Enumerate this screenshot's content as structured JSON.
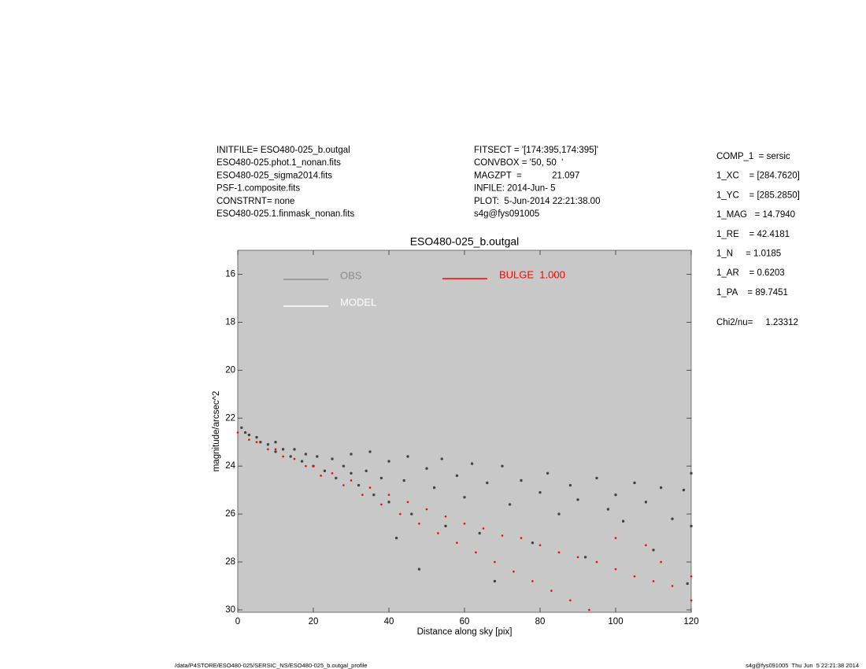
{
  "chart_data": {
    "type": "scatter",
    "title": "ESO480-025_b.outgal",
    "x_label": "Distance along sky [pix]",
    "y_label": "magnitude/arcsec^2",
    "xlim": [
      0,
      120
    ],
    "ylim": [
      15,
      30.1
    ],
    "y_reversed": true,
    "xticks": [
      0,
      20,
      40,
      60,
      80,
      100,
      120
    ],
    "yticks": [
      16,
      18,
      20,
      22,
      24,
      26,
      28,
      30
    ],
    "background": "#c8c8c8",
    "series": [
      {
        "name": "OBS",
        "color": "#444444",
        "legend_color": "#8c8c8c",
        "x": [
          1,
          2,
          3,
          5,
          6,
          8,
          10,
          10,
          12,
          14,
          15,
          17,
          18,
          20,
          21,
          23,
          25,
          26,
          28,
          30,
          30,
          32,
          34,
          35,
          36,
          38,
          40,
          40,
          42,
          44,
          45,
          46,
          48,
          50,
          52,
          54,
          55,
          58,
          60,
          62,
          64,
          66,
          68,
          70,
          72,
          75,
          78,
          80,
          82,
          85,
          88,
          90,
          92,
          95,
          98,
          100,
          102,
          105,
          108,
          110,
          112,
          115,
          118,
          119,
          120,
          120
        ],
        "values": [
          22.4,
          22.6,
          22.7,
          22.8,
          23.0,
          23.1,
          23.0,
          23.4,
          23.3,
          23.6,
          23.3,
          23.8,
          23.5,
          24.0,
          23.6,
          24.2,
          23.7,
          24.5,
          24.0,
          24.3,
          23.5,
          24.8,
          24.2,
          23.4,
          25.2,
          24.5,
          23.8,
          25.5,
          27.0,
          24.6,
          23.6,
          26.0,
          28.3,
          24.1,
          24.9,
          23.7,
          26.5,
          24.4,
          25.3,
          23.9,
          26.8,
          24.7,
          28.8,
          24.0,
          25.6,
          24.6,
          27.2,
          25.1,
          24.3,
          26.0,
          24.8,
          25.4,
          27.8,
          24.5,
          25.8,
          25.2,
          26.3,
          24.7,
          25.5,
          27.5,
          24.9,
          26.2,
          25.0,
          28.9,
          24.3,
          26.5
        ]
      },
      {
        "name": "MODEL",
        "color": "#ffffff",
        "legend_color": "#ffffff",
        "x": [],
        "values": []
      },
      {
        "name": "BULGE  1.000",
        "color": "#ff0000",
        "legend_color": "#ff0000",
        "x": [
          0,
          3,
          5,
          8,
          10,
          12,
          15,
          18,
          20,
          22,
          25,
          28,
          30,
          33,
          35,
          38,
          40,
          43,
          45,
          48,
          50,
          53,
          55,
          58,
          60,
          63,
          65,
          68,
          70,
          73,
          75,
          78,
          80,
          83,
          85,
          88,
          90,
          93,
          95,
          100,
          105,
          110,
          115,
          120,
          120,
          112,
          100,
          108
        ],
        "values": [
          22.6,
          22.9,
          23.0,
          23.3,
          23.3,
          23.6,
          23.7,
          24.0,
          24.0,
          24.4,
          24.3,
          24.8,
          24.6,
          25.2,
          24.9,
          25.6,
          25.2,
          26.0,
          25.5,
          26.4,
          25.8,
          26.8,
          26.1,
          27.2,
          26.4,
          27.6,
          26.6,
          28.0,
          26.9,
          28.4,
          27.0,
          28.8,
          27.3,
          29.2,
          27.6,
          29.6,
          27.8,
          30.0,
          28.0,
          28.3,
          28.6,
          28.8,
          29.0,
          28.6,
          29.6,
          28.0,
          27.0,
          27.3
        ]
      }
    ],
    "annotations": {
      "left": [
        "INITFILE= ESO480-025_b.outgal",
        "ESO480-025.phot.1_nonan.fits",
        "ESO480-025_sigma2014.fits",
        "PSF-1.composite.fits",
        "CONSTRNT= none",
        "ESO480-025.1.finmask_nonan.fits"
      ],
      "middle": [
        "FITSECT = '[174:395,174:395]'",
        "CONVBOX = '50, 50  '",
        "MAGZPT  =            21.097",
        "INFILE: 2014-Jun- 5",
        "PLOT:  5-Jun-2014 22:21:38.00",
        "s4g@fys091005"
      ],
      "right": [
        "COMP_1  = sersic",
        "1_XC    = [284.7620]",
        "1_YC    = [285.2850]",
        "1_MAG   = 14.7940",
        "1_RE    = 42.4181",
        "1_N     = 1.0185",
        "1_AR    = 0.6203",
        "1_PA    = 89.7451"
      ],
      "chi2": "Chi2/nu=     1.23312",
      "footer_left": "/data/P4STORE/ESO480-025/SERSIC_NS/ESO480-025_b.outgal_profile",
      "footer_right": "s4g@fys091005  Thu Jun  5 22:21:38 2014"
    }
  }
}
